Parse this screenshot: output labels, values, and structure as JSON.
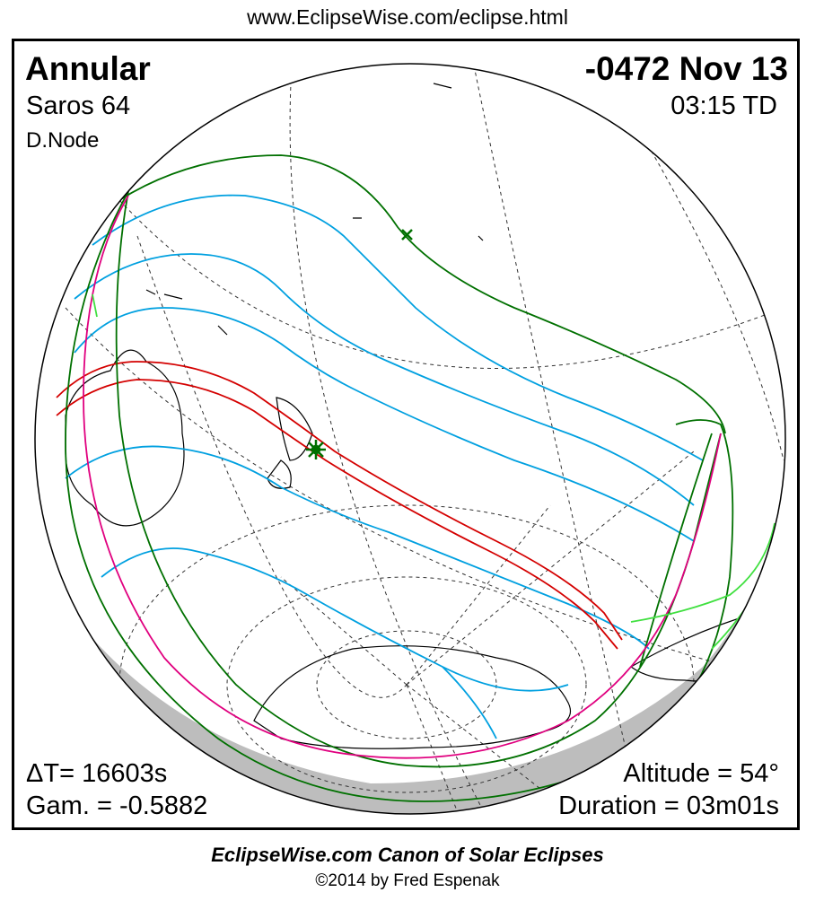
{
  "header_url": "www.EclipseWise.com/eclipse.html",
  "eclipse": {
    "type": "Annular",
    "date": "-0472 Nov 13",
    "saros": "Saros  64",
    "time": "03:15 TD",
    "node": "D.Node",
    "delta_t": "ΔT=  16603s",
    "gamma": "Gam. = -0.5882",
    "altitude": "Altitude = 54°",
    "duration": "Duration = 03m01s"
  },
  "footer": {
    "title": "EclipseWise.com Canon of Solar Eclipses",
    "copyright": "©2014 by Fred Espenak"
  },
  "colors": {
    "central_path": "#d40000",
    "penumbral_limits": "#00a0e0",
    "outer_limits": "#007000",
    "rise_set_curves": "#e0007f",
    "night_side": "#bdbdbd",
    "sunrise_curve": "#40e040"
  },
  "symbols": {
    "greatest_eclipse": "green-asterisk",
    "pole_marker": "green-x"
  }
}
